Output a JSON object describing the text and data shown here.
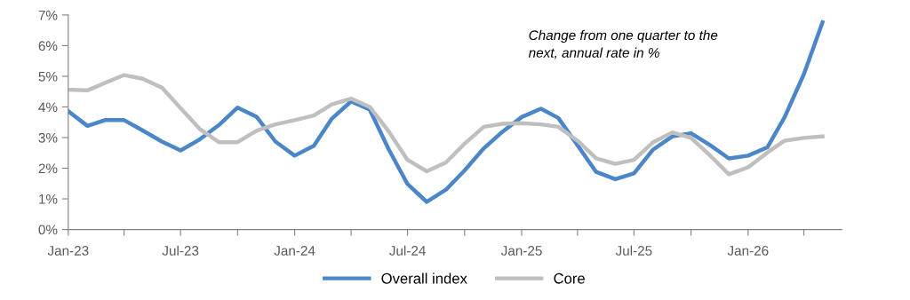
{
  "chart_data": {
    "type": "line",
    "x": [
      "2023-01",
      "2023-02",
      "2023-03",
      "2023-04",
      "2023-05",
      "2023-06",
      "2023-07",
      "2023-08",
      "2023-09",
      "2023-10",
      "2023-11",
      "2023-12",
      "2024-01",
      "2024-02",
      "2024-03",
      "2024-04",
      "2024-05",
      "2024-06",
      "2024-07",
      "2024-08",
      "2024-09",
      "2024-10",
      "2024-11",
      "2024-12",
      "2025-01",
      "2025-02",
      "2025-03",
      "2025-04",
      "2025-05",
      "2025-06",
      "2025-07",
      "2025-08",
      "2025-09",
      "2025-10",
      "2025-11",
      "2025-12",
      "2026-01",
      "2026-02",
      "2026-03",
      "2026-04",
      "2026-05"
    ],
    "series": [
      {
        "name": "Overall index",
        "color": "#4a86c8",
        "values": [
          3.86,
          3.38,
          3.57,
          3.57,
          3.23,
          2.87,
          2.58,
          2.94,
          3.41,
          3.98,
          3.67,
          2.87,
          2.41,
          2.73,
          3.62,
          4.18,
          3.91,
          2.6,
          1.48,
          0.9,
          1.3,
          1.93,
          2.65,
          3.19,
          3.67,
          3.94,
          3.64,
          2.75,
          1.88,
          1.64,
          1.83,
          2.61,
          3.04,
          3.14,
          2.75,
          2.32,
          2.41,
          2.68,
          3.67,
          5.07,
          6.76
        ]
      },
      {
        "name": "Core",
        "color": "#bfbfbf",
        "values": [
          4.56,
          4.54,
          4.78,
          5.04,
          4.92,
          4.63,
          3.96,
          3.28,
          2.85,
          2.85,
          3.23,
          3.43,
          3.57,
          3.72,
          4.08,
          4.27,
          4.0,
          3.19,
          2.27,
          1.9,
          2.19,
          2.8,
          3.35,
          3.45,
          3.47,
          3.43,
          3.35,
          2.9,
          2.32,
          2.14,
          2.27,
          2.85,
          3.17,
          2.99,
          2.41,
          1.8,
          2.03,
          2.51,
          2.9,
          2.99,
          3.04
        ]
      }
    ],
    "xlim": [
      "2023-01",
      "2026-06"
    ],
    "xticks": [
      {
        "value": "2023-01",
        "label": "Jan-23"
      },
      {
        "value": "2023-04",
        "label": null
      },
      {
        "value": "2023-07",
        "label": "Jul-23"
      },
      {
        "value": "2023-10",
        "label": null
      },
      {
        "value": "2024-01",
        "label": "Jan-24"
      },
      {
        "value": "2024-04",
        "label": null
      },
      {
        "value": "2024-07",
        "label": "Jul-24"
      },
      {
        "value": "2024-10",
        "label": null
      },
      {
        "value": "2025-01",
        "label": "Jan-25"
      },
      {
        "value": "2025-04",
        "label": null
      },
      {
        "value": "2025-07",
        "label": "Jul-25"
      },
      {
        "value": "2025-10",
        "label": null
      },
      {
        "value": "2026-01",
        "label": "Jan-26"
      },
      {
        "value": "2026-04",
        "label": null
      }
    ],
    "ylim": [
      0,
      7
    ],
    "yticks": [
      {
        "value": 0,
        "label": "0%"
      },
      {
        "value": 1,
        "label": "1%"
      },
      {
        "value": 2,
        "label": "2%"
      },
      {
        "value": 3,
        "label": "3%"
      },
      {
        "value": 4,
        "label": "4%"
      },
      {
        "value": 5,
        "label": "5%"
      },
      {
        "value": 6,
        "label": "6%"
      },
      {
        "value": 7,
        "label": "7%"
      }
    ],
    "annotations": [
      "Change from one quarter to the next, annual rate in %"
    ],
    "legend": "bottom",
    "grid": false,
    "marker": "none",
    "line_style": "solid"
  }
}
